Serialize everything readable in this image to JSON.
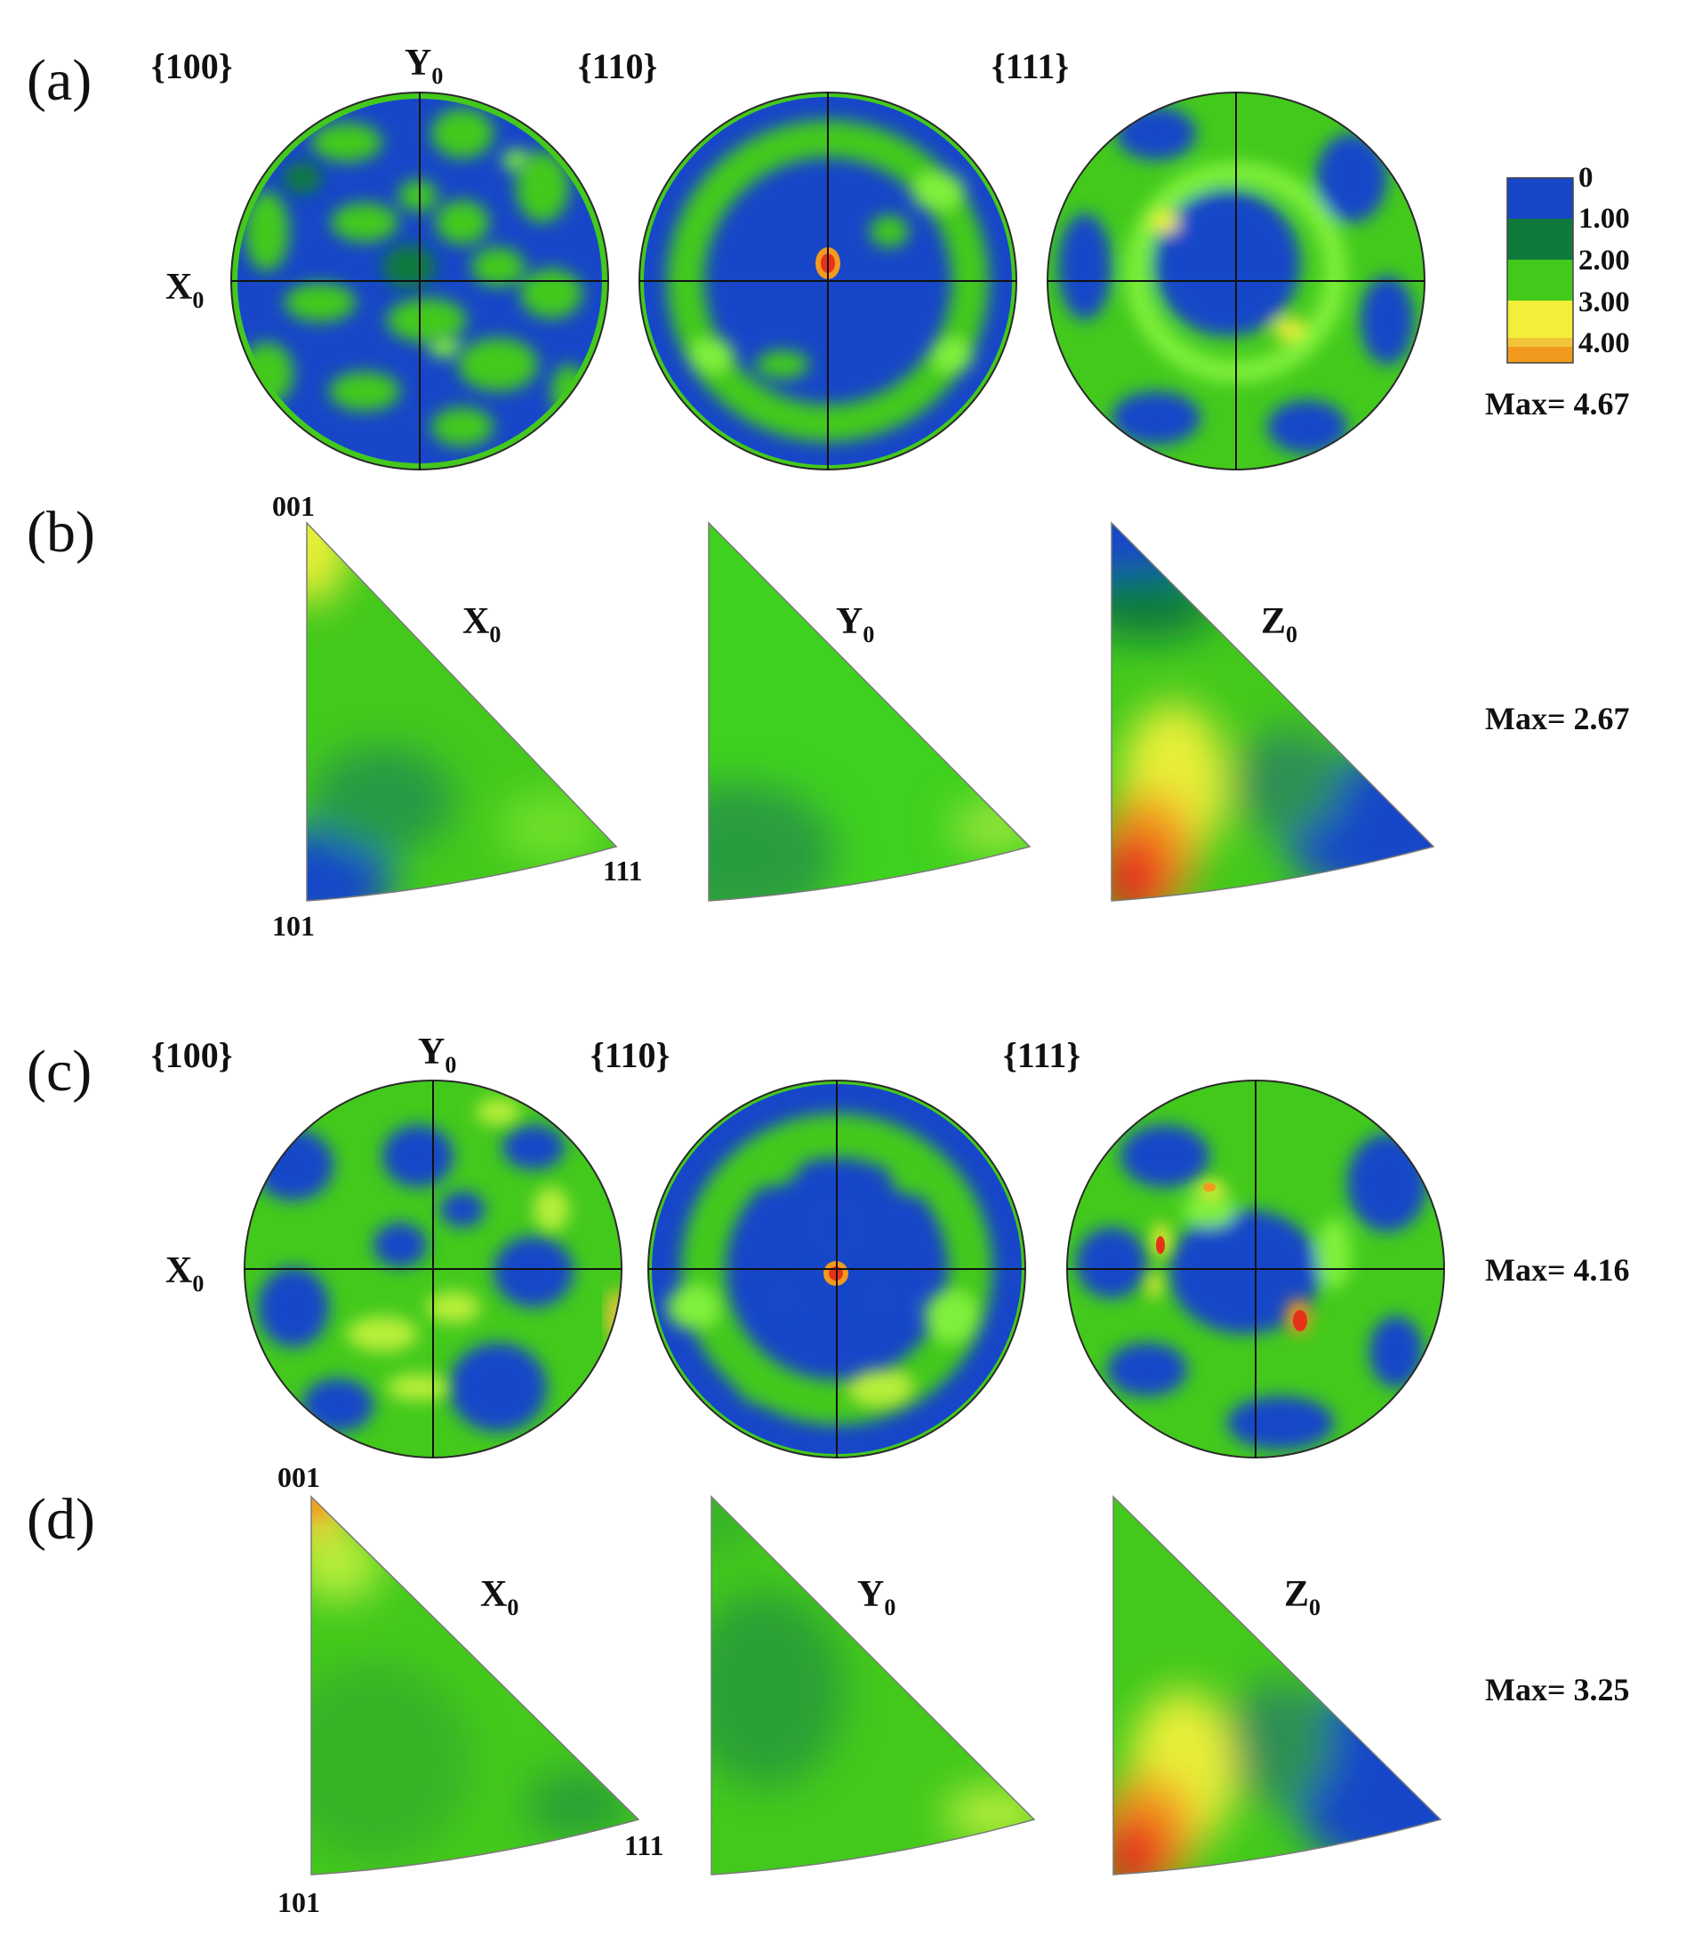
{
  "colors": {
    "low": "#1746c8",
    "lowmid": "#0f7a3c",
    "mid": "#43c91c",
    "midbright": "#3fe51c",
    "high": "#f2ee3a",
    "higher": "#f29a1e",
    "max": "#e7321a",
    "cross": "#111111",
    "rim": "#2a2a2a"
  },
  "panel_labels": {
    "a": "(a)",
    "b": "(b)",
    "c": "(c)",
    "d": "(d)"
  },
  "pole_titles": {
    "p100": "{100}",
    "p110": "{110}",
    "p111": "{111}"
  },
  "axes": {
    "x": "X",
    "y": "Y",
    "z": "Z",
    "sub": "0"
  },
  "ipf_corners": {
    "c001": "001",
    "c101": "101",
    "c111": "111"
  },
  "legend": {
    "ticks": [
      "0",
      "1.00",
      "2.00",
      "3.00",
      "4.00"
    ]
  },
  "max_values": {
    "a": "Max= 4.67",
    "b": "Max= 2.67",
    "c": "Max= 4.16",
    "d": "Max= 3.25"
  }
}
